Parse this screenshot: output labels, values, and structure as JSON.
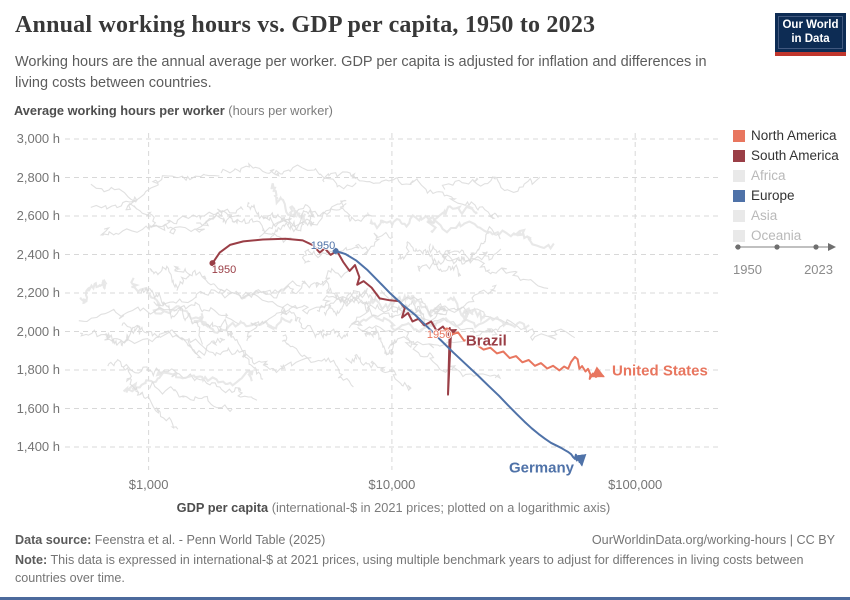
{
  "header": {
    "title": "Annual working hours vs. GDP per capita, 1950 to 2023",
    "subtitle": "Working hours are the annual average per worker. GDP per capita is adjusted for inflation and differences in living costs between countries.",
    "logo": {
      "line1": "Our World",
      "line2": "in Data",
      "bg_color": "#0d2c54",
      "accent_color": "#c0362c"
    }
  },
  "legend": {
    "items": [
      {
        "label": "North America",
        "color": "#e8765f",
        "active": true
      },
      {
        "label": "South America",
        "color": "#9a3e46",
        "active": true
      },
      {
        "label": "Africa",
        "color": "#e9e9e9",
        "active": false
      },
      {
        "label": "Europe",
        "color": "#4f72a8",
        "active": true
      },
      {
        "label": "Asia",
        "color": "#e9e9e9",
        "active": false
      },
      {
        "label": "Oceania",
        "color": "#e9e9e9",
        "active": false
      }
    ],
    "timeline": {
      "start": "1950",
      "end": "2023"
    }
  },
  "chart_data": {
    "type": "line",
    "variant": "connected-scatter-over-log-x",
    "title": "Annual working hours vs. GDP per capita, 1950 to 2023",
    "xlabel_bold": "GDP per capita",
    "xlabel_rest": " (international-$ in 2021 prices; plotted on a logarithmic axis)",
    "ylabel_bold": "Average working hours per worker",
    "ylabel_rest": " (hours per worker)",
    "x_scale": "log",
    "xlim": [
      500,
      220000
    ],
    "ylim": [
      1250,
      3050
    ],
    "grid": true,
    "x_ticks": [
      {
        "value": 1000,
        "label": "$1,000"
      },
      {
        "value": 10000,
        "label": "$10,000"
      },
      {
        "value": 100000,
        "label": "$100,000"
      }
    ],
    "y_ticks": [
      {
        "value": 3000,
        "label": "3,000 h"
      },
      {
        "value": 2800,
        "label": "2,800 h"
      },
      {
        "value": 2600,
        "label": "2,600 h"
      },
      {
        "value": 2400,
        "label": "2,400 h"
      },
      {
        "value": 2200,
        "label": "2,200 h"
      },
      {
        "value": 2000,
        "label": "2,000 h"
      },
      {
        "value": 1800,
        "label": "1,800 h"
      },
      {
        "value": 1600,
        "label": "1,600 h"
      },
      {
        "value": 1400,
        "label": "1,400 h"
      }
    ],
    "series": [
      {
        "name": "Brazil",
        "region": "South America",
        "color": "#9a3e46",
        "start_year": 1950,
        "end_year": 2023,
        "start_dot": true,
        "label": {
          "text": "Brazil",
          "anchor_gdp": 19400,
          "anchor_hours": 1951,
          "align": "left"
        },
        "year_label": {
          "text": "1950",
          "gdp": 2042,
          "hours": 2320
        },
        "points": [
          [
            1830,
            2355
          ],
          [
            1960,
            2410
          ],
          [
            2160,
            2450
          ],
          [
            2450,
            2468
          ],
          [
            2950,
            2478
          ],
          [
            3650,
            2482
          ],
          [
            4300,
            2473
          ],
          [
            4750,
            2448
          ],
          [
            5050,
            2410
          ],
          [
            5300,
            2432
          ],
          [
            5600,
            2398
          ],
          [
            5950,
            2418
          ],
          [
            6300,
            2362
          ],
          [
            6700,
            2315
          ],
          [
            7050,
            2345
          ],
          [
            7350,
            2282
          ],
          [
            7200,
            2243
          ],
          [
            7650,
            2262
          ],
          [
            8250,
            2228
          ],
          [
            8900,
            2172
          ],
          [
            9800,
            2162
          ],
          [
            10700,
            2158
          ],
          [
            11300,
            2122
          ],
          [
            11000,
            2072
          ],
          [
            11650,
            2096
          ],
          [
            12150,
            2052
          ],
          [
            12850,
            2066
          ],
          [
            13600,
            2032
          ],
          [
            14500,
            2052
          ],
          [
            15300,
            2002
          ],
          [
            16200,
            2026
          ],
          [
            16900,
            1992
          ],
          [
            17300,
            2018
          ],
          [
            17000,
            1672
          ],
          [
            17500,
            1996
          ],
          [
            18250,
            2008
          ]
        ]
      },
      {
        "name": "United States",
        "region": "North America",
        "color": "#e8765f",
        "start_year": 1950,
        "end_year": 2023,
        "start_dot": true,
        "label": {
          "text": "United States",
          "anchor_gdp": 77300,
          "anchor_hours": 1795,
          "align": "left"
        },
        "year_label": {
          "text": "1950",
          "gdp": 15630,
          "hours": 1982
        },
        "points": [
          [
            16800,
            2008
          ],
          [
            17800,
            1986
          ],
          [
            18700,
            1996
          ],
          [
            19800,
            1952
          ],
          [
            21000,
            1963
          ],
          [
            22300,
            1931
          ],
          [
            23800,
            1906
          ],
          [
            25400,
            1916
          ],
          [
            27000,
            1886
          ],
          [
            28700,
            1896
          ],
          [
            30500,
            1862
          ],
          [
            32400,
            1872
          ],
          [
            34400,
            1840
          ],
          [
            36500,
            1852
          ],
          [
            38700,
            1822
          ],
          [
            41000,
            1836
          ],
          [
            43500,
            1808
          ],
          [
            46000,
            1822
          ],
          [
            48800,
            1798
          ],
          [
            51000,
            1818
          ],
          [
            53000,
            1806
          ],
          [
            54500,
            1842
          ],
          [
            56500,
            1868
          ],
          [
            58000,
            1856
          ],
          [
            59000,
            1806
          ],
          [
            60500,
            1820
          ],
          [
            62500,
            1792
          ],
          [
            64000,
            1806
          ],
          [
            65500,
            1776
          ],
          [
            65000,
            1754
          ],
          [
            67000,
            1782
          ],
          [
            69000,
            1764
          ],
          [
            71000,
            1778
          ],
          [
            73800,
            1768
          ]
        ]
      },
      {
        "name": "Germany",
        "region": "Europe",
        "color": "#4f72a8",
        "start_year": 1950,
        "end_year": 2023,
        "start_dot": true,
        "label": {
          "text": "Germany",
          "anchor_gdp": 58200,
          "anchor_hours": 1291,
          "align": "right"
        },
        "year_label": {
          "text": "1950",
          "gdp": 5210,
          "hours": 2444
        },
        "points": [
          [
            5870,
            2418
          ],
          [
            6450,
            2402
          ],
          [
            7150,
            2368
          ],
          [
            7950,
            2318
          ],
          [
            8850,
            2258
          ],
          [
            9850,
            2198
          ],
          [
            11050,
            2140
          ],
          [
            12450,
            2086
          ],
          [
            14050,
            2022
          ],
          [
            15850,
            1956
          ],
          [
            17850,
            1892
          ],
          [
            20050,
            1832
          ],
          [
            22550,
            1772
          ],
          [
            25050,
            1716
          ],
          [
            27550,
            1666
          ],
          [
            30050,
            1616
          ],
          [
            32550,
            1572
          ],
          [
            35050,
            1532
          ],
          [
            37550,
            1497
          ],
          [
            40050,
            1468
          ],
          [
            42550,
            1443
          ],
          [
            45050,
            1422
          ],
          [
            47550,
            1407
          ],
          [
            49550,
            1396
          ],
          [
            51550,
            1383
          ],
          [
            53050,
            1374
          ],
          [
            54550,
            1362
          ],
          [
            55550,
            1348
          ],
          [
            56550,
            1338
          ],
          [
            57050,
            1360
          ],
          [
            57550,
            1330
          ],
          [
            58550,
            1352
          ],
          [
            59050,
            1322
          ],
          [
            59850,
            1338
          ],
          [
            60350,
            1308
          ]
        ]
      }
    ],
    "background_series": {
      "description": "All other countries shown as unhighlighted light-gray lines",
      "color": "#dadada",
      "count": 55
    }
  },
  "footer": {
    "datasource_label": "Data source:",
    "datasource_value": "Feenstra et al. - Penn World Table (2025)",
    "link": "OurWorldinData.org/working-hours | CC BY",
    "note_label": "Note:",
    "note_text": "This data is expressed in international-$ at 2021 prices, using multiple benchmark years to adjust for differences in living costs between countries over time."
  }
}
